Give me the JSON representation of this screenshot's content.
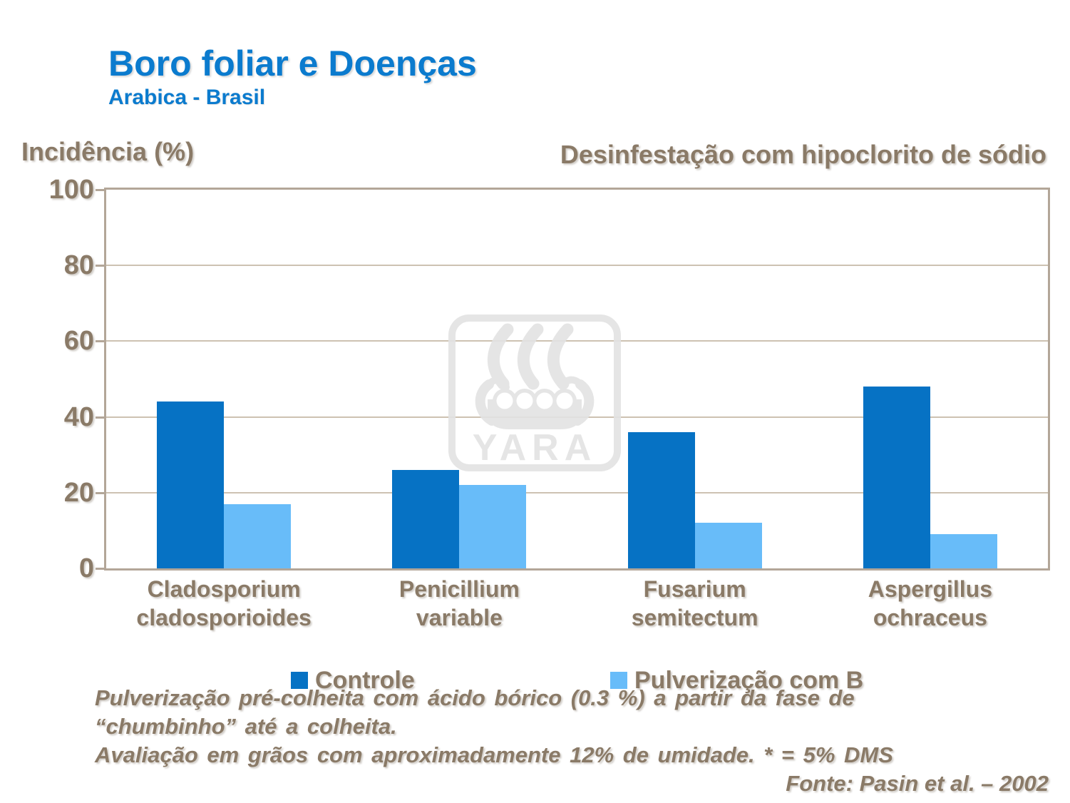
{
  "header": {
    "title": "Boro foliar e Doenças",
    "subtitle": "Arabica - Brasil"
  },
  "chart_data": {
    "type": "bar",
    "categories": [
      "Cladosporium cladosporioides",
      "Penicillium variable",
      "Fusarium semitectum",
      "Aspergillus ochraceus"
    ],
    "categories_lines": [
      [
        "Cladosporium",
        "cladosporioides"
      ],
      [
        "Penicillium",
        "variable"
      ],
      [
        "Fusarium",
        "semitectum"
      ],
      [
        "Aspergillus",
        "ochraceus"
      ]
    ],
    "series": [
      {
        "name": "Controle",
        "color": "#0672c4",
        "values": [
          44,
          26,
          36,
          48
        ]
      },
      {
        "name": "Pulverização com B",
        "color": "#68bcf9",
        "values": [
          17,
          22,
          12,
          9
        ]
      }
    ],
    "ylabel": "Incidência (%)",
    "annotation": "Desinfestação com hipoclorito de sódio",
    "ylim": [
      0,
      100
    ],
    "y_ticks": [
      0,
      20,
      40,
      60,
      80,
      100
    ],
    "grid": true,
    "legend_position": "bottom"
  },
  "footnotes": {
    "lines": [
      "Pulverização pré-colheita com ácido bórico (0.3 %) a partir da fase de",
      "“chumbinho” até a colheita.",
      "Avaliação em grãos com aproximadamente 12% de umidade. * = 5% DMS"
    ],
    "source": "Fonte: Pasin et al. – 2002"
  },
  "watermark": {
    "label": "YARA"
  },
  "colors": {
    "title_blue": "#0b7bce",
    "text_brown": "#8a7a67",
    "bar_dark": "#0672c4",
    "bar_light": "#68bcf9",
    "gridline": "#cdc2b2",
    "plot_border": "#b3a698",
    "watermark_gray": "#e3e3e3"
  }
}
